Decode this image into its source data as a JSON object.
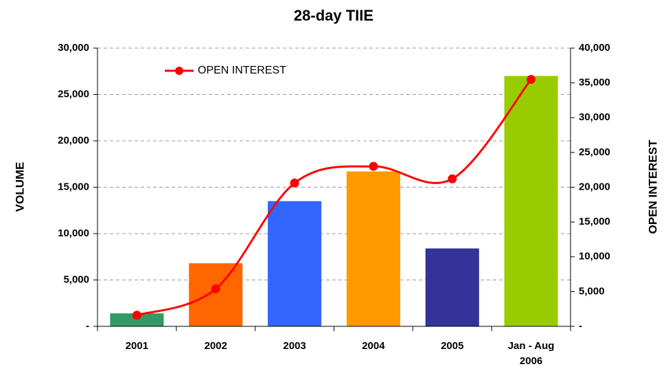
{
  "chart_data": {
    "type": "bar_line",
    "title": "28-day TIIE",
    "y_label": "VOLUME",
    "y2_label": "OPEN INTEREST",
    "categories": [
      "2001",
      "2002",
      "2003",
      "2004",
      "2005",
      "Jan - Aug 2006"
    ],
    "series": [
      {
        "type": "bar",
        "colors": [
          "#339966",
          "#ff6600",
          "#3366ff",
          "#ff9900",
          "#333399",
          "#99cc00"
        ],
        "values": [
          1400,
          6800,
          13500,
          16700,
          8400,
          27000
        ]
      },
      {
        "type": "line",
        "name": "OPEN INTEREST",
        "color": "#ff0000",
        "axis": "y2",
        "values": [
          1600,
          5400,
          20600,
          23000,
          21200,
          35500
        ]
      }
    ],
    "ylim": [
      0,
      30000
    ],
    "yticks": [
      {
        "value": 0,
        "label": "-"
      },
      {
        "value": 5000,
        "label": "5,000"
      },
      {
        "value": 10000,
        "label": "10,000"
      },
      {
        "value": 15000,
        "label": "15,000"
      },
      {
        "value": 20000,
        "label": "20,000"
      },
      {
        "value": 25000,
        "label": "25,000"
      },
      {
        "value": 30000,
        "label": "30,000"
      }
    ],
    "y2lim": [
      0,
      40000
    ],
    "y2ticks": [
      {
        "value": 0,
        "label": "-"
      },
      {
        "value": 5000,
        "label": "5,000"
      },
      {
        "value": 10000,
        "label": "10,000"
      },
      {
        "value": 15000,
        "label": "15,000"
      },
      {
        "value": 20000,
        "label": "20,000"
      },
      {
        "value": 25000,
        "label": "25,000"
      },
      {
        "value": 30000,
        "label": "30,000"
      },
      {
        "value": 35000,
        "label": "35,000"
      },
      {
        "value": 40000,
        "label": "40,000"
      }
    ],
    "grid": true,
    "legend": "upper-left"
  }
}
